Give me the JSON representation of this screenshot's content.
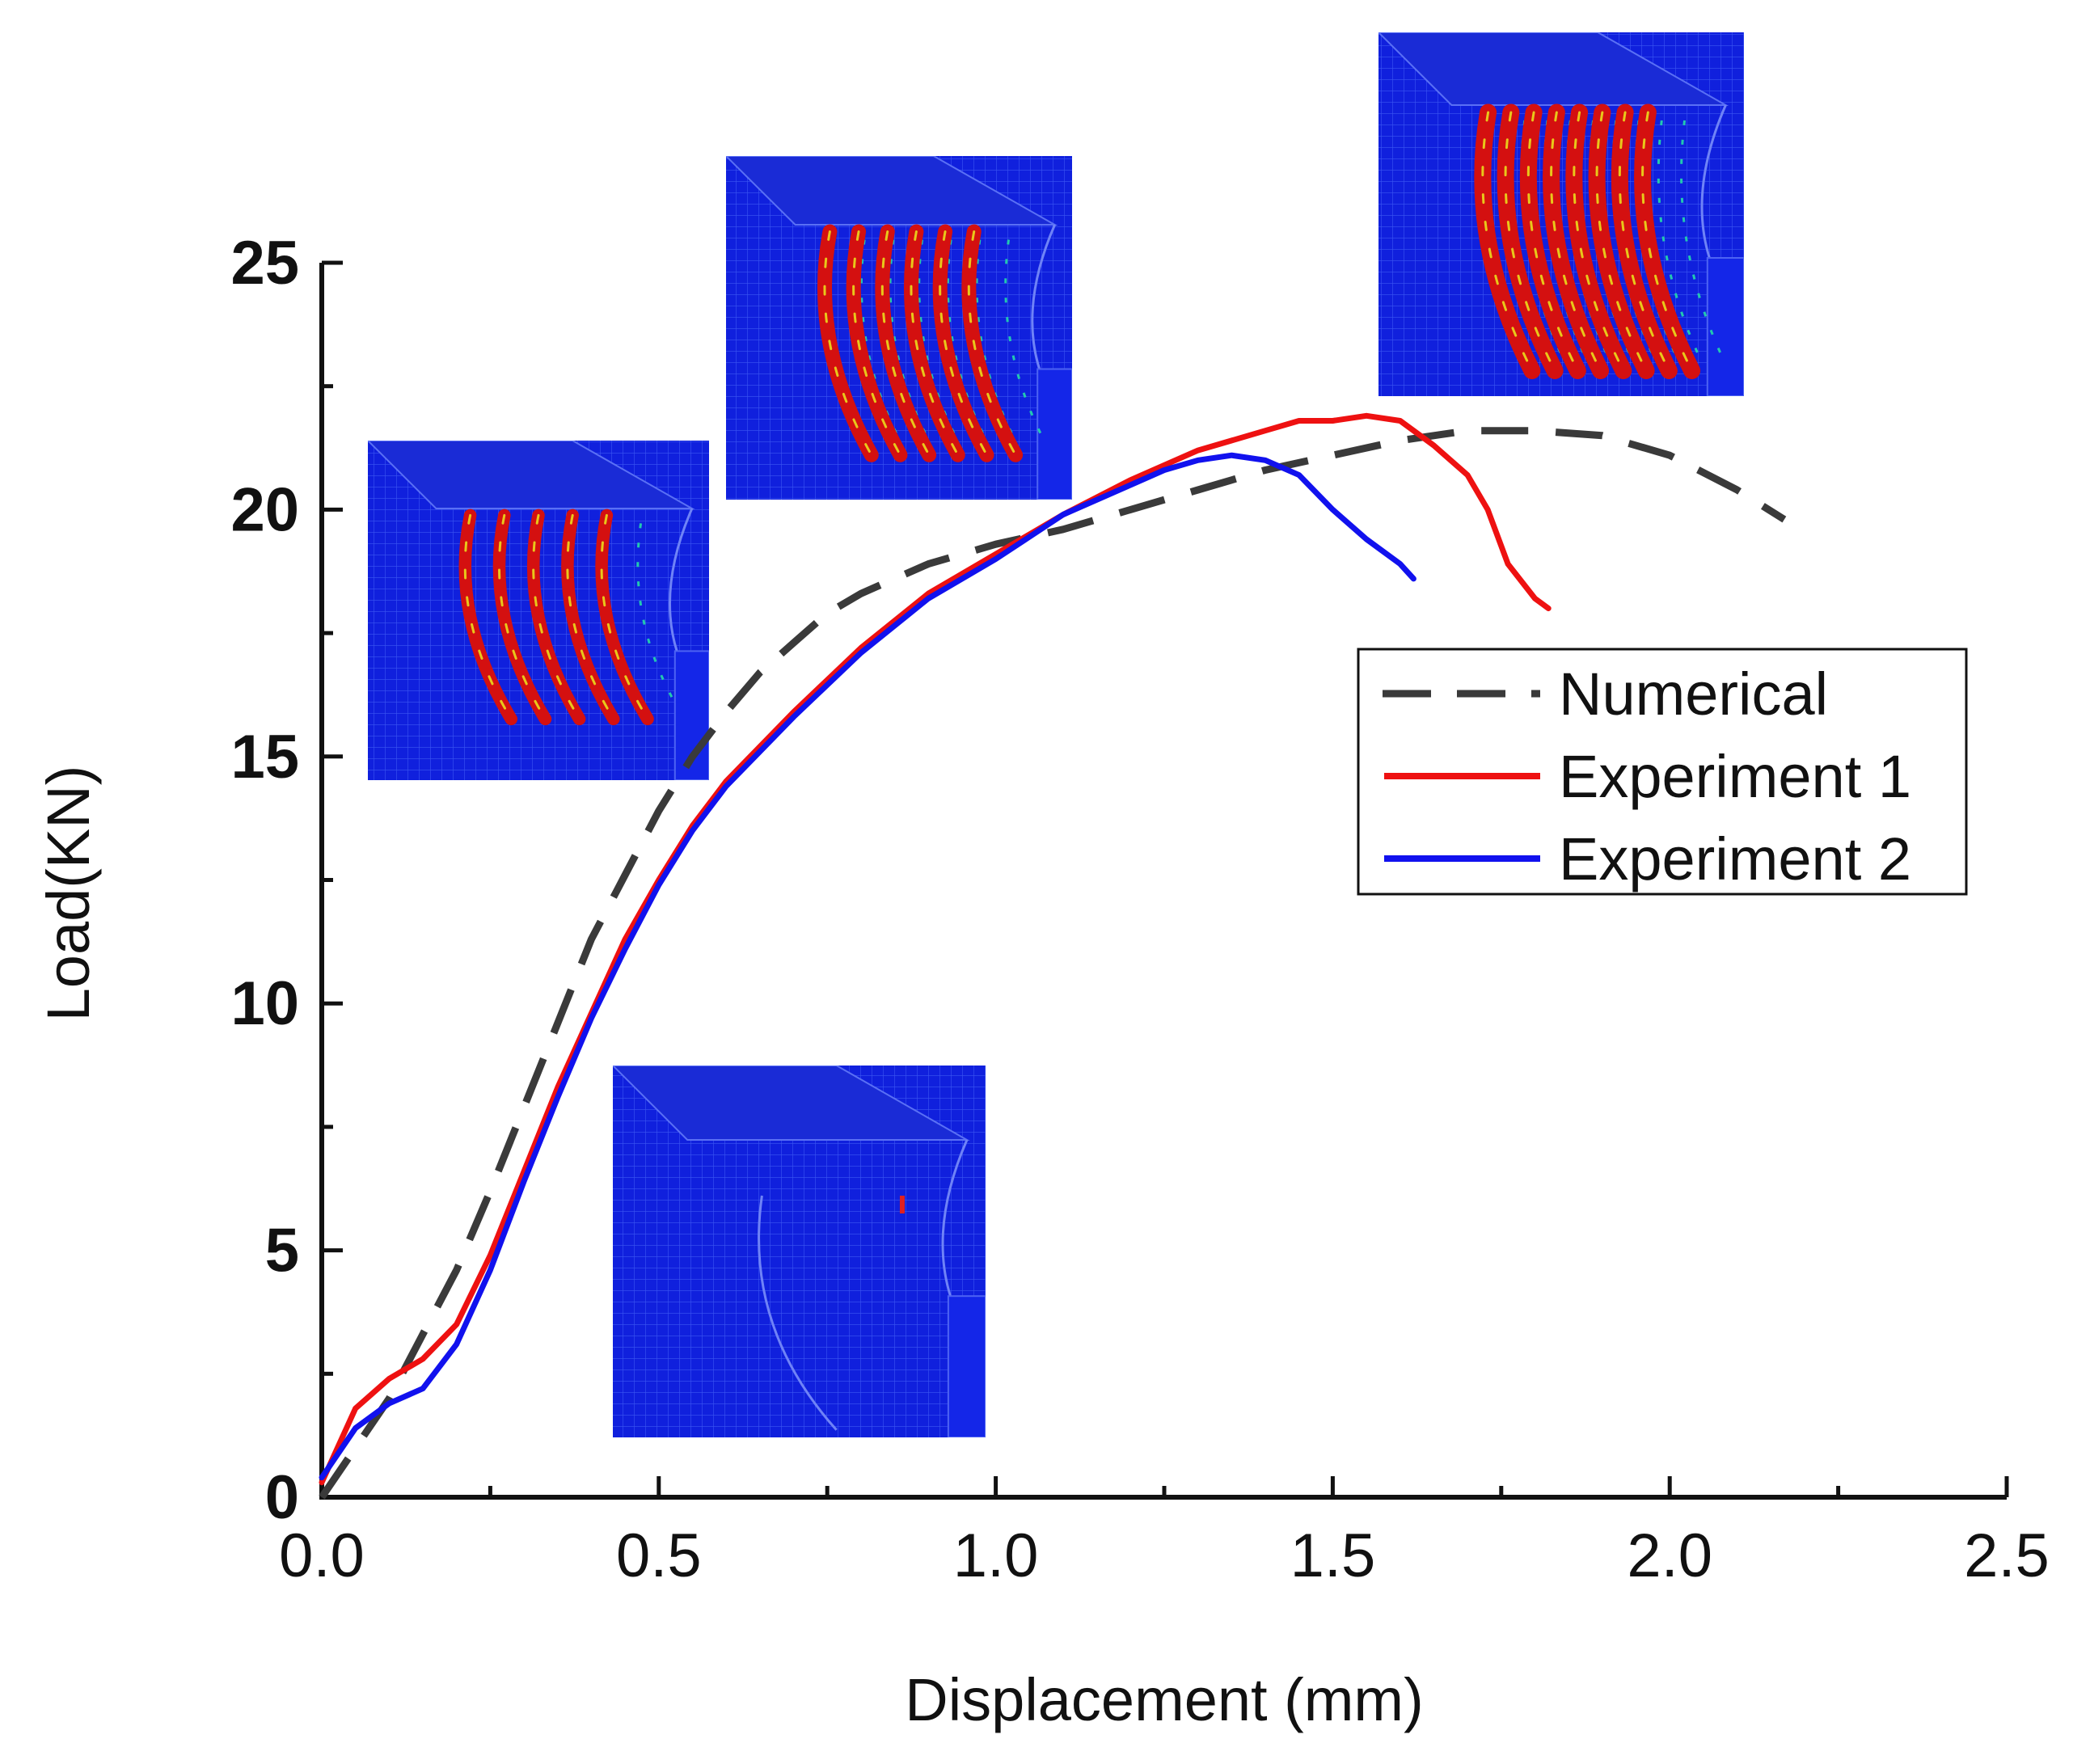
{
  "chart_data": {
    "type": "line",
    "title": "",
    "xlabel": "Displacement (mm)",
    "ylabel": "Load(KN)",
    "xlim": [
      0.0,
      2.5
    ],
    "ylim": [
      0,
      25
    ],
    "x_ticks": [
      "0.0",
      "0.5",
      "1.0",
      "1.5",
      "2.0",
      "2.5"
    ],
    "y_ticks": [
      "0",
      "5",
      "10",
      "15",
      "20",
      "25"
    ],
    "grid": false,
    "legend_position": "right",
    "series": [
      {
        "name": "Numerical",
        "color": "#3a3a3a",
        "style": "dashed",
        "x": [
          0.0,
          0.05,
          0.1,
          0.15,
          0.2,
          0.25,
          0.3,
          0.35,
          0.4,
          0.45,
          0.5,
          0.55,
          0.6,
          0.65,
          0.7,
          0.75,
          0.8,
          0.9,
          1.0,
          1.1,
          1.2,
          1.3,
          1.4,
          1.5,
          1.6,
          1.7,
          1.8,
          1.9,
          2.0,
          2.1,
          2.17
        ],
        "y": [
          0.0,
          1.0,
          2.0,
          3.3,
          4.6,
          6.2,
          7.9,
          9.6,
          11.3,
          12.6,
          13.9,
          15.0,
          15.9,
          16.7,
          17.3,
          17.9,
          18.3,
          18.9,
          19.3,
          19.6,
          20.0,
          20.4,
          20.8,
          21.1,
          21.4,
          21.6,
          21.6,
          21.5,
          21.1,
          20.4,
          19.8
        ]
      },
      {
        "name": "Experiment 1",
        "color": "#ee1111",
        "style": "solid",
        "x": [
          0.0,
          0.05,
          0.1,
          0.15,
          0.2,
          0.25,
          0.3,
          0.35,
          0.4,
          0.45,
          0.5,
          0.55,
          0.6,
          0.7,
          0.8,
          0.9,
          1.0,
          1.1,
          1.2,
          1.3,
          1.4,
          1.45,
          1.5,
          1.55,
          1.6,
          1.65,
          1.7,
          1.73,
          1.76,
          1.8,
          1.82
        ],
        "y": [
          0.3,
          1.8,
          2.4,
          2.8,
          3.5,
          4.9,
          6.6,
          8.3,
          9.8,
          11.3,
          12.5,
          13.6,
          14.5,
          15.9,
          17.2,
          18.3,
          19.1,
          19.9,
          20.6,
          21.2,
          21.6,
          21.8,
          21.8,
          21.9,
          21.8,
          21.3,
          20.7,
          20.0,
          18.9,
          18.2,
          18.0
        ]
      },
      {
        "name": "Experiment 2",
        "color": "#1111ee",
        "style": "solid",
        "x": [
          0.0,
          0.05,
          0.1,
          0.15,
          0.2,
          0.25,
          0.3,
          0.35,
          0.4,
          0.45,
          0.5,
          0.55,
          0.6,
          0.7,
          0.8,
          0.9,
          1.0,
          1.1,
          1.2,
          1.25,
          1.3,
          1.35,
          1.4,
          1.45,
          1.5,
          1.55,
          1.6,
          1.62
        ],
        "y": [
          0.4,
          1.4,
          1.9,
          2.2,
          3.1,
          4.6,
          6.4,
          8.1,
          9.7,
          11.1,
          12.4,
          13.5,
          14.4,
          15.8,
          17.1,
          18.2,
          19.0,
          19.9,
          20.5,
          20.8,
          21.0,
          21.1,
          21.0,
          20.7,
          20.0,
          19.4,
          18.9,
          18.6
        ]
      }
    ]
  },
  "insets": [
    {
      "name": "fem-inset-stage-1",
      "damage": "low"
    },
    {
      "name": "fem-inset-stage-2",
      "damage": "moderate"
    },
    {
      "name": "fem-inset-stage-3",
      "damage": "high"
    },
    {
      "name": "fem-inset-stage-4",
      "damage": "severe"
    }
  ]
}
